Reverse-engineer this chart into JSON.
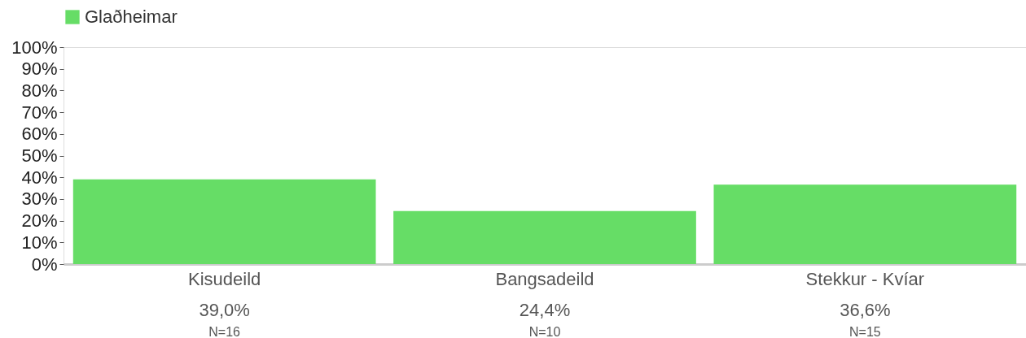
{
  "chart_data": {
    "type": "bar",
    "categories": [
      "Kisudeild",
      "Bangsadeild",
      "Stekkur - Kvíar"
    ],
    "series": [
      {
        "name": "Glaðheimar",
        "color": "#66dd66",
        "values": [
          39.0,
          24.4,
          36.6
        ],
        "value_labels": [
          "39,0%",
          "24,4%",
          "36,6%"
        ]
      }
    ],
    "annotations": [
      "N=16",
      "N=10",
      "N=15"
    ],
    "ylim": [
      0,
      100
    ],
    "yticks": [
      {
        "value": 0,
        "label": "0%"
      },
      {
        "value": 10,
        "label": "10%"
      },
      {
        "value": 20,
        "label": "20%"
      },
      {
        "value": 30,
        "label": "30%"
      },
      {
        "value": 40,
        "label": "40%"
      },
      {
        "value": 50,
        "label": "50%"
      },
      {
        "value": 60,
        "label": "60%"
      },
      {
        "value": 70,
        "label": "70%"
      },
      {
        "value": 80,
        "label": "80%"
      },
      {
        "value": 90,
        "label": "90%"
      },
      {
        "value": 100,
        "label": "100%"
      }
    ],
    "grid": false,
    "legend": "top left"
  }
}
